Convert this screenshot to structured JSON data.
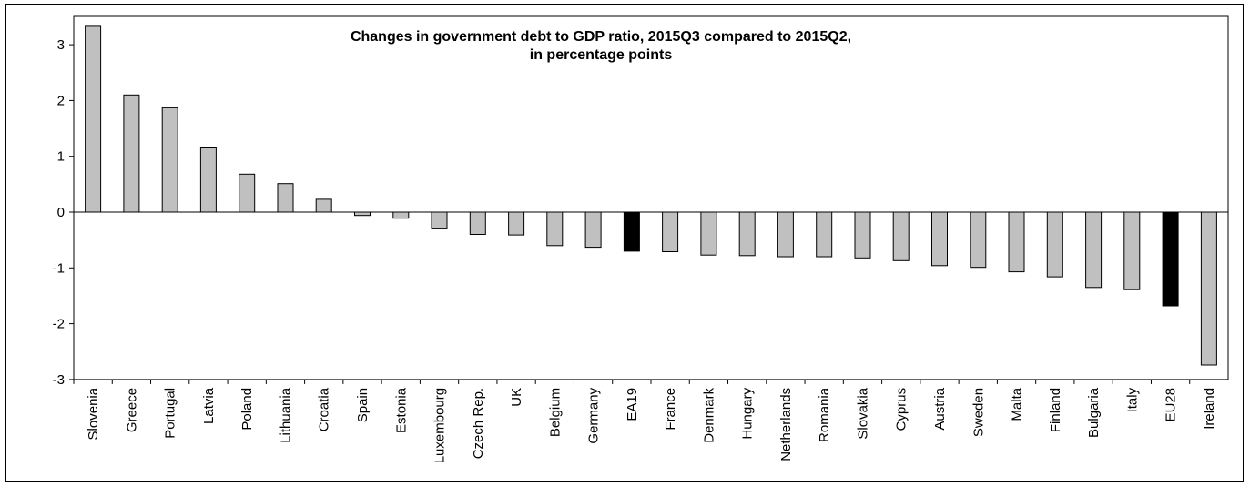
{
  "chart_data": {
    "type": "bar",
    "title": "Changes in government debt to GDP ratio, 2015Q3 compared to 2015Q2,",
    "subtitle": "in percentage points",
    "ylim": [
      -3,
      3.4
    ],
    "yticks": [
      3,
      2,
      1,
      0,
      -1,
      -2,
      -3
    ],
    "grid": false,
    "legend": "none",
    "categories": [
      "Slovenia",
      "Greece",
      "Portugal",
      "Latvia",
      "Poland",
      "Lithuania",
      "Croatia",
      "Spain",
      "Estonia",
      "Luxembourg",
      "Czech Rep.",
      "UK",
      "Belgium",
      "Germany",
      "EA19",
      "France",
      "Denmark",
      "Hungary",
      "Netherlands",
      "Romania",
      "Slovakia",
      "Cyprus",
      "Austria",
      "Sweden",
      "Malta",
      "Finland",
      "Bulgaria",
      "Italy",
      "EU28",
      "Ireland"
    ],
    "values": [
      3.33,
      2.1,
      1.87,
      1.15,
      0.68,
      0.51,
      0.23,
      -0.06,
      -0.11,
      -0.3,
      -0.4,
      -0.41,
      -0.6,
      -0.63,
      -0.7,
      -0.71,
      -0.77,
      -0.78,
      -0.8,
      -0.8,
      -0.82,
      -0.87,
      -0.96,
      -0.99,
      -1.07,
      -1.16,
      -1.35,
      -1.39,
      -1.68,
      -2.74
    ],
    "colors": {
      "default": "#c0c0c0",
      "highlight": "#000000",
      "outline": "#000000"
    },
    "highlighted": [
      "EA19",
      "EU28"
    ]
  }
}
